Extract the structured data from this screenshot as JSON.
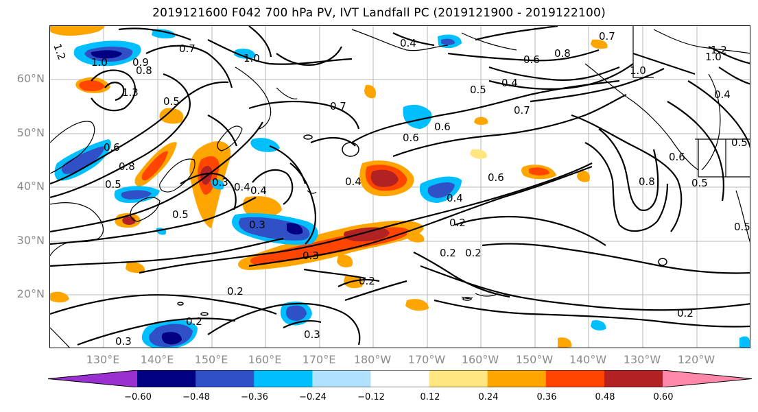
{
  "title": "2019121600 F042 700 hPa PV, IVT Landfall PC (2019121900 - 2019122100)",
  "lat_labels": [
    "60°N",
    "50°N",
    "40°N",
    "30°N",
    "20°N"
  ],
  "lon_labels": [
    "130°E",
    "140°E",
    "150°E",
    "160°E",
    "170°E",
    "180°W",
    "170°W",
    "160°W",
    "150°W",
    "140°W",
    "130°W",
    "120°W"
  ],
  "colorbar": {
    "tick_labels": [
      "−0.60",
      "−0.48",
      "−0.36",
      "−0.24",
      "−0.12",
      "0.12",
      "0.24",
      "0.36",
      "0.48",
      "0.60"
    ],
    "colors": [
      "#9b30d0",
      "#000080",
      "#3050c8",
      "#00bfff",
      "#b0e2ff",
      "#ffffff",
      "#ffe680",
      "#ffa500",
      "#ff4500",
      "#b22222",
      "#ff88aa"
    ]
  },
  "contour_labels": [
    "1.2",
    "1.0",
    "0.7",
    "0.9",
    "0.8",
    "1.0",
    "0.5",
    "0.6",
    "0.8",
    "0.5",
    "0.4",
    "1.3",
    "0.3",
    "0.5",
    "0.3",
    "0.4",
    "0.4",
    "0.7",
    "0.6",
    "0.4",
    "0.5",
    "0.4",
    "0.7",
    "0.6",
    "0.4",
    "0.2",
    "0.3",
    "0.2",
    "0.2",
    "0.2",
    "0.2",
    "0.3",
    "0.2",
    "0.3",
    "0.6",
    "0.8",
    "0.8",
    "0.6",
    "1.0",
    "0.7",
    "1.0",
    "0.4",
    "0.5",
    "0.6",
    "0.5",
    "0.5",
    "0.2",
    "1.2"
  ]
}
